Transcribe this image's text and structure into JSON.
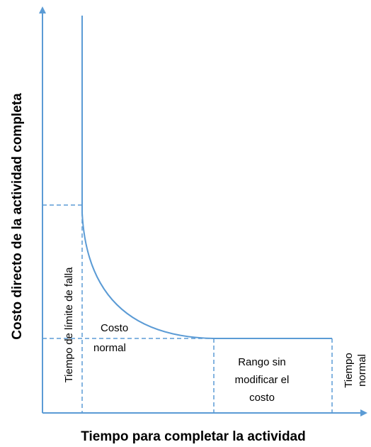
{
  "axes": {
    "x_title": "Tiempo para completar la actividad",
    "y_title": "Costo directo de la actividad completa"
  },
  "labels": {
    "tiempo_limite": "Tiempo de límite de falla",
    "costo_normal_line1": "Costo",
    "costo_normal_line2": "normal",
    "rango_line1": "Rango sin",
    "rango_line2": "modificar el",
    "rango_line3": "costo",
    "tiempo_normal_line1": "Tiempo",
    "tiempo_normal_line2": "normal"
  },
  "colors": {
    "line": "#5B9BD5",
    "text": "#000000"
  }
}
